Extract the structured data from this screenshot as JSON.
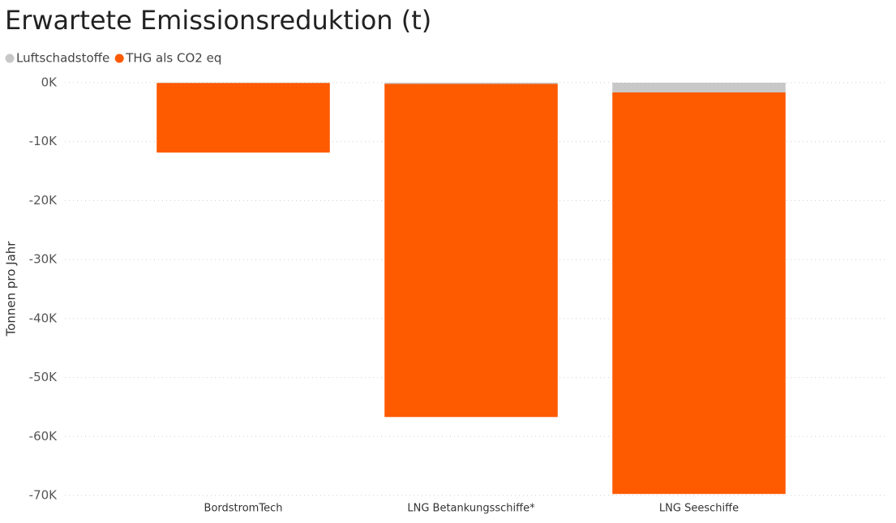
{
  "chart_data": {
    "type": "stacked_bar",
    "title": "Erwartete Emissionsreduktion (t)",
    "y_label": "Tonnen pro Jahr",
    "categories": [
      "BordstromTech",
      "LNG Betankungsschiffe*",
      "LNG Seeschiffe"
    ],
    "series": [
      {
        "name": "Luftschadstoffe",
        "color": "#c8c8c8",
        "values": [
          -50,
          -200,
          -1650
        ]
      },
      {
        "name": "THG als CO2 eq",
        "color": "#fe5a00",
        "values": [
          -11800,
          -56500,
          -68100
        ]
      }
    ],
    "ylim": [
      -70000,
      0
    ],
    "yticks": [
      {
        "value": 0,
        "label": "0K"
      },
      {
        "value": -10000,
        "label": "-10K"
      },
      {
        "value": -20000,
        "label": "-20K"
      },
      {
        "value": -30000,
        "label": "-30K"
      },
      {
        "value": -40000,
        "label": "-40K"
      },
      {
        "value": -50000,
        "label": "-50K"
      },
      {
        "value": -60000,
        "label": "-60K"
      },
      {
        "value": -70000,
        "label": "-70K"
      }
    ],
    "grid": true
  }
}
